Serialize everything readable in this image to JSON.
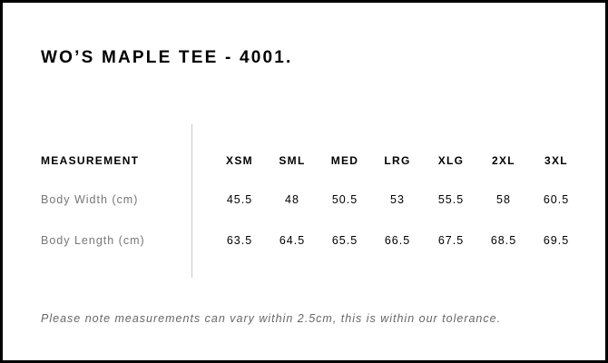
{
  "title": "WO’S MAPLE TEE - 4001.",
  "table": {
    "header_label": "MEASUREMENT",
    "sizes": [
      "XSM",
      "SML",
      "MED",
      "LRG",
      "XLG",
      "2XL",
      "3XL"
    ],
    "rows": [
      {
        "label": "Body Width (cm)",
        "values": [
          "45.5",
          "48",
          "50.5",
          "53",
          "55.5",
          "58",
          "60.5"
        ]
      },
      {
        "label": "Body Length (cm)",
        "values": [
          "63.5",
          "64.5",
          "65.5",
          "66.5",
          "67.5",
          "68.5",
          "69.5"
        ]
      }
    ]
  },
  "note": "Please note measurements can vary within 2.5cm, this is within our tolerance."
}
